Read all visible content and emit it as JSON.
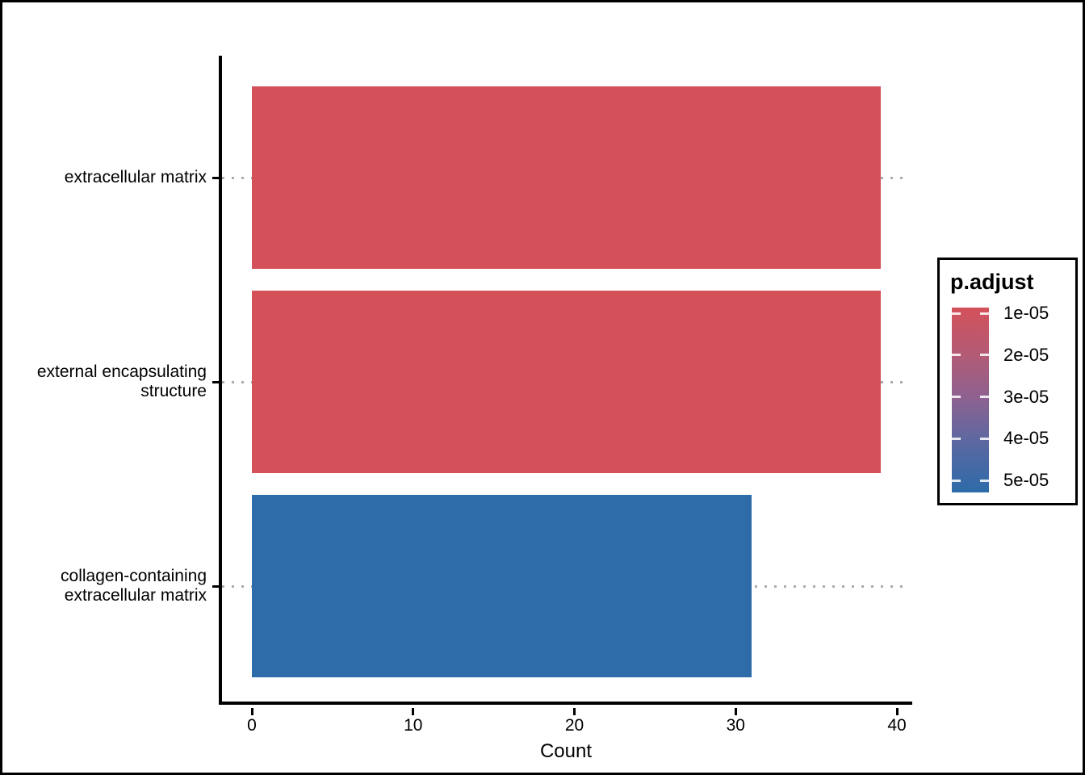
{
  "chart_data": {
    "type": "bar",
    "orientation": "horizontal",
    "title": "",
    "xlabel": "Count",
    "ylabel": "",
    "categories": [
      "extracellular matrix",
      "external encapsulating\nstructure",
      "collagen-containing\nextracellular matrix"
    ],
    "values": [
      39,
      39,
      31
    ],
    "bar_colors": [
      "#D4515A",
      "#D4515A",
      "#2D6BA9"
    ],
    "xtick_values": [
      0,
      10,
      20,
      30,
      40
    ],
    "xtick_labels": [
      "0",
      "10",
      "20",
      "30",
      "40"
    ],
    "xlim": [
      0,
      41
    ],
    "grid": {
      "style": "dotted",
      "color": "#ABABAB",
      "direction": "horizontal"
    },
    "axis_color": "#000000",
    "legend": {
      "title": "p.adjust",
      "position": "right",
      "labels": [
        "1e-05",
        "2e-05",
        "3e-05",
        "4e-05",
        "5e-05"
      ],
      "gradient_stops": [
        {
          "pos": 0.0,
          "color": "#D4515A"
        },
        {
          "pos": 0.26,
          "color": "#B25B76"
        },
        {
          "pos": 0.49,
          "color": "#8D6190"
        },
        {
          "pos": 0.71,
          "color": "#5F68A0"
        },
        {
          "pos": 1.0,
          "color": "#2D6BA9"
        }
      ]
    }
  }
}
